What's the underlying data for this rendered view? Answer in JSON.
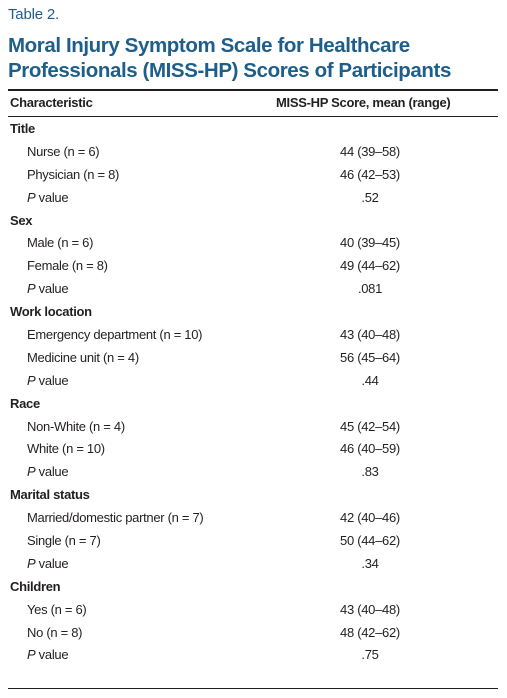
{
  "table_label": "Table 2.",
  "title": "Moral Injury Symptom Scale for Healthcare Professionals (MISS-HP) Scores of Participants",
  "columns": {
    "characteristic": "Characteristic",
    "score": "MISS-HP Score, mean (range)"
  },
  "p_prefix": "P",
  "p_suffix": " value",
  "groups": [
    {
      "name": "Title",
      "rows": [
        {
          "label": "Nurse (n = 6)",
          "value": "44 (39–58)"
        },
        {
          "label": "Physician (n = 8)",
          "value": "46 (42–53)"
        }
      ],
      "p": ".52"
    },
    {
      "name": "Sex",
      "rows": [
        {
          "label": "Male (n = 6)",
          "value": "40 (39–45)"
        },
        {
          "label": "Female (n = 8)",
          "value": "49 (44–62)"
        }
      ],
      "p": ".081"
    },
    {
      "name": "Work location",
      "rows": [
        {
          "label": "Emergency department (n = 10)",
          "value": "43 (40–48)"
        },
        {
          "label": "Medicine unit (n = 4)",
          "value": "56 (45–64)"
        }
      ],
      "p": ".44"
    },
    {
      "name": "Race",
      "rows": [
        {
          "label": "Non-White (n = 4)",
          "value": "45 (42–54)"
        },
        {
          "label": "White (n = 10)",
          "value": "46 (40–59)"
        }
      ],
      "p": ".83"
    },
    {
      "name": "Marital status",
      "rows": [
        {
          "label": "Married/domestic partner (n = 7)",
          "value": "42 (40–46)"
        },
        {
          "label": "Single (n = 7)",
          "value": "50 (44–62)"
        }
      ],
      "p": ".34"
    },
    {
      "name": "Children",
      "rows": [
        {
          "label": "Yes (n = 6)",
          "value": "43 (40–48)"
        },
        {
          "label": "No (n = 8)",
          "value": "48 (42–62)"
        }
      ],
      "p": ".75"
    }
  ],
  "colors": {
    "title": "#1d5f8a",
    "text": "#231f20",
    "rule": "#231f20"
  }
}
